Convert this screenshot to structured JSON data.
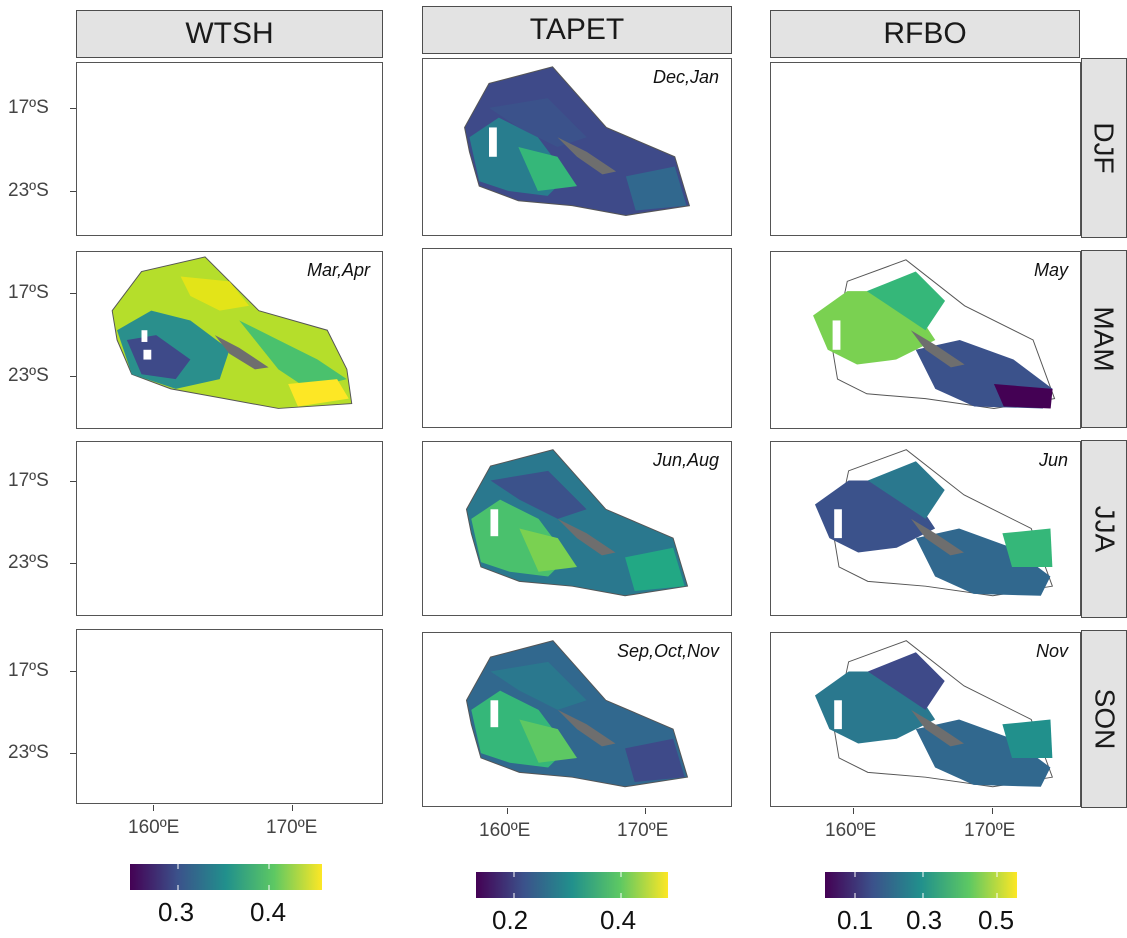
{
  "columns": [
    "WTSH",
    "TAPET",
    "RFBO"
  ],
  "rows": [
    "DJF",
    "MAM",
    "JJA",
    "SON"
  ],
  "lat_labels": [
    "17ºS",
    "23ºS"
  ],
  "lon_labels": [
    "160ºE",
    "170ºE"
  ],
  "panel_labels": {
    "TAPET_DJF": "Dec,Jan",
    "WTSH_MAM": "Mar,Apr",
    "RFBO_MAM": "May",
    "TAPET_JJA": "Jun,Aug",
    "RFBO_JJA": "Jun",
    "TAPET_SON": "Sep,Oct,Nov",
    "RFBO_SON": "Nov"
  },
  "colorbars": {
    "WTSH": [
      "0.3",
      "0.4"
    ],
    "TAPET": [
      "0.2",
      "0.4"
    ],
    "RFBO": [
      "0.1",
      "0.3",
      "0.5"
    ]
  },
  "colors": {
    "viridis": [
      "#440154",
      "#3b528b",
      "#21908c",
      "#5dc863",
      "#fde725"
    ],
    "land": "#6e6e6e",
    "outline": "#555555"
  }
}
